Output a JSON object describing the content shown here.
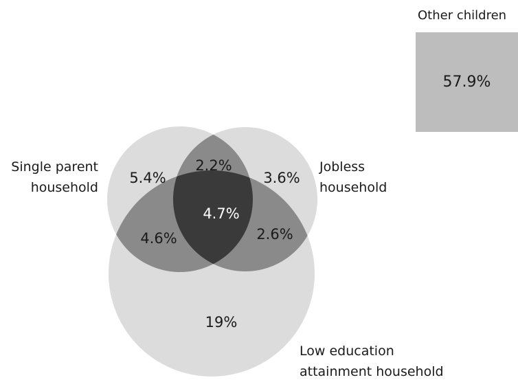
{
  "sets": {
    "single_parent": {
      "line1": "Single parent",
      "line2": "household"
    },
    "jobless": {
      "line1": "Jobless",
      "line2": "household"
    },
    "low_education": {
      "line1": "Low education",
      "line2": "attainment household"
    }
  },
  "regions": {
    "single_parent_only": "5.4%",
    "jobless_only": "3.6%",
    "single_parent_and_jobless": "2.2%",
    "all_three": "4.7%",
    "single_parent_and_low_education": "4.6%",
    "jobless_and_low_education": "2.6%",
    "low_education_only": "19%"
  },
  "other_children": {
    "title": "Other children",
    "value": "57.9%"
  },
  "colors": {
    "single_region": "#dcdcdc",
    "double_overlap": "#8a8a8a",
    "triple_overlap": "#3a3a3a",
    "other_box": "#bdbdbd"
  }
}
